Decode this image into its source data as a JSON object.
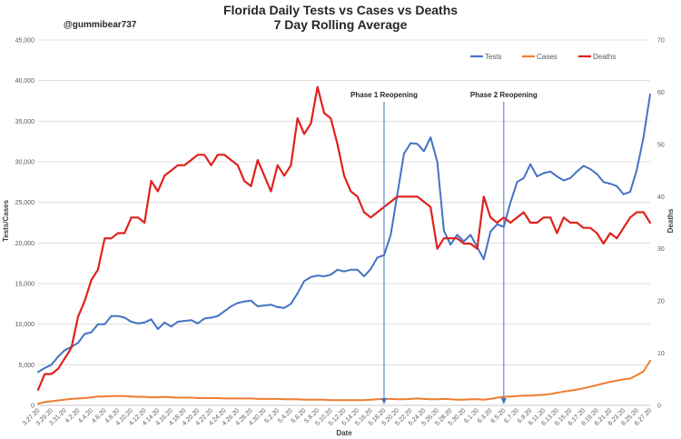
{
  "chart_data": {
    "type": "line",
    "title_line1": "Florida Daily Tests vs Cases vs Deaths",
    "title_line2": "7 Day Rolling Average",
    "watermark": "@gummibear737",
    "xlabel": "Date",
    "ylabel_left": "Tests/Cases",
    "ylabel_right": "Deaths",
    "ylim_left": [
      0,
      45000
    ],
    "ylim_right": [
      0,
      70
    ],
    "yticks_left": [
      "0",
      "5,000",
      "10,000",
      "15,000",
      "20,000",
      "25,000",
      "30,000",
      "35,000",
      "40,000",
      "45,000"
    ],
    "yticks_right": [
      "0",
      "10",
      "20",
      "30",
      "40",
      "50",
      "60",
      "70"
    ],
    "grid": true,
    "legend_position": "top-right",
    "x": [
      "3.27.20",
      "3.28.20",
      "3.29.20",
      "3.30.20",
      "3.31.20",
      "4.1.20",
      "4.2.20",
      "4.3.20",
      "4.4.20",
      "4.5.20",
      "4.6.20",
      "4.7.20",
      "4.8.20",
      "4.9.20",
      "4.10.20",
      "4.11.20",
      "4.12.20",
      "4.13.20",
      "4.14.20",
      "4.15.20",
      "4.16.20",
      "4.17.20",
      "4.18.20",
      "4.19.20",
      "4.20.20",
      "4.21.20",
      "4.22.20",
      "4.23.20",
      "4.24.20",
      "4.25.20",
      "4.26.20",
      "4.27.20",
      "4.28.20",
      "4.29.20",
      "4.30.20",
      "5.1.20",
      "5.2.20",
      "5.3.20",
      "5.4.20",
      "5.5.20",
      "5.6.20",
      "5.7.20",
      "5.8.20",
      "5.9.20",
      "5.10.20",
      "5.11.20",
      "5.12.20",
      "5.13.20",
      "5.14.20",
      "5.15.20",
      "5.16.20",
      "5.17.20",
      "5.18.20",
      "5.19.20",
      "5.20.20",
      "5.21.20",
      "5.22.20",
      "5.23.20",
      "5.24.20",
      "5.25.20",
      "5.26.20",
      "5.27.20",
      "5.28.20",
      "5.29.20",
      "5.30.20",
      "5.31.20",
      "6.1.20",
      "6.2.20",
      "6.3.20",
      "6.4.20",
      "6.5.20",
      "6.6.20",
      "6.7.20",
      "6.8.20",
      "6.9.20",
      "6.10.20",
      "6.11.20",
      "6.12.20",
      "6.13.20",
      "6.14.20",
      "6.15.20",
      "6.16.20",
      "6.17.20",
      "6.18.20",
      "6.19.20",
      "6.20.20",
      "6.21.20",
      "6.22.20",
      "6.23.20",
      "6.24.20",
      "6.25.20",
      "6.26.20",
      "6.27.20"
    ],
    "x_tick_labels": [
      "3.27.20",
      "3.29.20",
      "3.31.20",
      "4.2.20",
      "4.4.20",
      "4.6.20",
      "4.8.20",
      "4.10.20",
      "4.12.20",
      "4.14.20",
      "4.16.20",
      "4.18.20",
      "4.20.20",
      "4.22.20",
      "4.24.20",
      "4.26.20",
      "4.28.20",
      "4.30.20",
      "5.2.20",
      "5.4.20",
      "5.6.20",
      "5.8.20",
      "5.10.20",
      "5.12.20",
      "5.14.20",
      "5.16.20",
      "5.18.20",
      "5.20.20",
      "5.22.20",
      "5.24.20",
      "5.26.20",
      "5.28.20",
      "5.30.20",
      "6.1.20",
      "6.3.20",
      "6.5.20",
      "6.7.20",
      "6.9.20",
      "6.11.20",
      "6.13.20",
      "6.15.20",
      "6.17.20",
      "6.19.20",
      "6.21.20",
      "6.23.20",
      "6.25.20",
      "6.27.20"
    ],
    "series": [
      {
        "name": "Tests",
        "axis": "left",
        "color": "#4472C4",
        "values": [
          4100,
          4600,
          5000,
          6000,
          6800,
          7200,
          7700,
          8800,
          9000,
          10000,
          10000,
          11000,
          11000,
          10800,
          10300,
          10100,
          10200,
          10600,
          9400,
          10200,
          9700,
          10300,
          10400,
          10500,
          10100,
          10700,
          10800,
          11000,
          11600,
          12200,
          12600,
          12800,
          12900,
          12200,
          12300,
          12400,
          12100,
          12000,
          12500,
          13800,
          15300,
          15800,
          16000,
          15900,
          16100,
          16700,
          16500,
          16700,
          16700,
          15900,
          16800,
          18200,
          18500,
          21000,
          26000,
          31000,
          32300,
          32200,
          31300,
          33000,
          30000,
          21500,
          19800,
          21000,
          20200,
          21000,
          19500,
          18000,
          21400,
          22300,
          22000,
          25000,
          27500,
          28000,
          29700,
          28200,
          28600,
          28800,
          28200,
          27700,
          28000,
          28800,
          29500,
          29100,
          28500,
          27500,
          27300,
          27000,
          26000,
          26300,
          29000,
          33000,
          38300
        ]
      },
      {
        "name": "Cases",
        "axis": "left",
        "color": "#ED7D31",
        "values": [
          200,
          400,
          500,
          600,
          700,
          800,
          850,
          900,
          1000,
          1100,
          1100,
          1150,
          1150,
          1150,
          1100,
          1050,
          1050,
          1000,
          1000,
          1050,
          1000,
          950,
          950,
          950,
          900,
          900,
          900,
          900,
          850,
          850,
          850,
          850,
          850,
          800,
          800,
          800,
          800,
          750,
          750,
          750,
          700,
          700,
          700,
          700,
          650,
          650,
          650,
          650,
          650,
          650,
          700,
          750,
          800,
          800,
          750,
          750,
          800,
          850,
          800,
          750,
          750,
          800,
          750,
          700,
          700,
          750,
          750,
          700,
          800,
          950,
          1050,
          1100,
          1150,
          1200,
          1200,
          1250,
          1300,
          1400,
          1550,
          1700,
          1800,
          1950,
          2100,
          2300,
          2500,
          2700,
          2900,
          3050,
          3200,
          3300,
          3700,
          4200,
          5500
        ]
      },
      {
        "name": "Deaths",
        "axis": "right",
        "color": "#E0211C",
        "values": [
          3,
          6,
          6,
          7,
          9,
          11,
          17,
          20,
          24,
          26,
          32,
          32,
          33,
          33,
          36,
          36,
          35,
          43,
          41,
          44,
          45,
          46,
          46,
          47,
          48,
          48,
          46,
          48,
          48,
          47,
          46,
          43,
          42,
          47,
          44,
          41,
          46,
          44,
          46,
          55,
          52,
          54,
          61,
          56,
          55,
          50,
          44,
          41,
          40,
          37,
          36,
          37,
          38,
          39,
          40,
          40,
          40,
          40,
          39,
          38,
          30,
          32,
          32,
          32,
          31,
          31,
          30,
          40,
          36,
          35,
          36,
          35,
          36,
          37,
          35,
          35,
          36,
          36,
          33,
          36,
          35,
          35,
          34,
          34,
          33,
          31,
          33,
          32,
          34,
          36,
          37,
          37,
          35
        ]
      }
    ],
    "annotations": [
      {
        "label": "Phase 1 Reopening",
        "x": "5.18.20"
      },
      {
        "label": "Phase 2 Reopening",
        "x": "6.5.20"
      }
    ]
  }
}
